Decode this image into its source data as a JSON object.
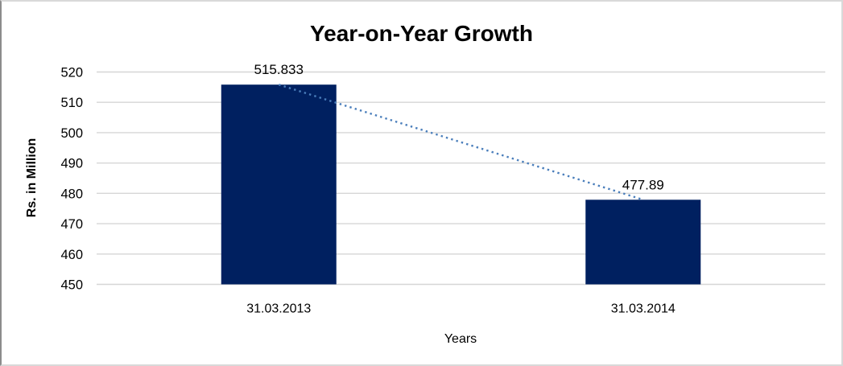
{
  "chart_data": {
    "type": "bar",
    "title": "Year-on-Year Growth",
    "xlabel": "Years",
    "ylabel": "Rs. in Million",
    "categories": [
      "31.03.2013",
      "31.03.2014"
    ],
    "series": [
      {
        "name": "Rs. in Million",
        "values": [
          515.833,
          477.89
        ],
        "data_labels": [
          "515.833",
          "477.89"
        ]
      }
    ],
    "ylim": [
      450,
      520
    ],
    "yticks": [
      450,
      460,
      470,
      480,
      490,
      500,
      510,
      520
    ],
    "grid": true,
    "legend_position": "none",
    "bar_color": "#002060",
    "gridline_color": "#d6d6d6",
    "text_color": "#000000",
    "trendline": {
      "style": "dotted",
      "color": "#4a7ebb",
      "connects": "bar-top-centers"
    }
  }
}
